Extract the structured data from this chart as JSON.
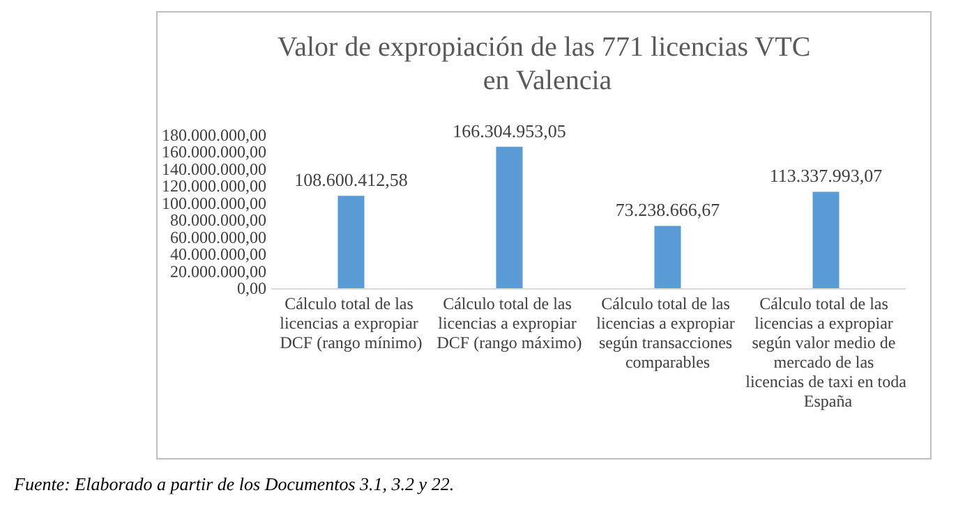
{
  "chart_data": {
    "type": "bar",
    "title": "Valor de expropiación de las 771 licencias VTC en Valencia",
    "categories": [
      "Cálculo total de las licencias a expropiar DCF (rango mínimo)",
      "Cálculo total de las licencias a expropiar DCF (rango máximo)",
      "Cálculo total de las licencias a expropiar según transacciones comparables",
      "Cálculo total de las licencias a expropiar según valor medio de mercado de las licencias de taxi en toda España"
    ],
    "values": [
      108600412.58,
      166304953.05,
      73238666.67,
      113337993.07
    ],
    "value_labels": [
      "108.600.412,58",
      "166.304.953,05",
      "73.238.666,67",
      "113.337.993,07"
    ],
    "color": "#5b9bd5",
    "ylim": [
      0,
      180000000
    ],
    "yticks": [
      {
        "value": 0,
        "label": "0,00"
      },
      {
        "value": 20000000,
        "label": "20.000.000,00"
      },
      {
        "value": 40000000,
        "label": "40.000.000,00"
      },
      {
        "value": 60000000,
        "label": "60.000.000,00"
      },
      {
        "value": 80000000,
        "label": "80.000.000,00"
      },
      {
        "value": 100000000,
        "label": "100.000.000,00"
      },
      {
        "value": 120000000,
        "label": "120.000.000,00"
      },
      {
        "value": 140000000,
        "label": "140.000.000,00"
      },
      {
        "value": 160000000,
        "label": "160.000.000,00"
      },
      {
        "value": 180000000,
        "label": "180.000.000,00"
      }
    ],
    "grid": false,
    "annotations": [
      "Fuente: Elaborado a partir de los Documentos 3.1, 3.2 y 22."
    ]
  }
}
